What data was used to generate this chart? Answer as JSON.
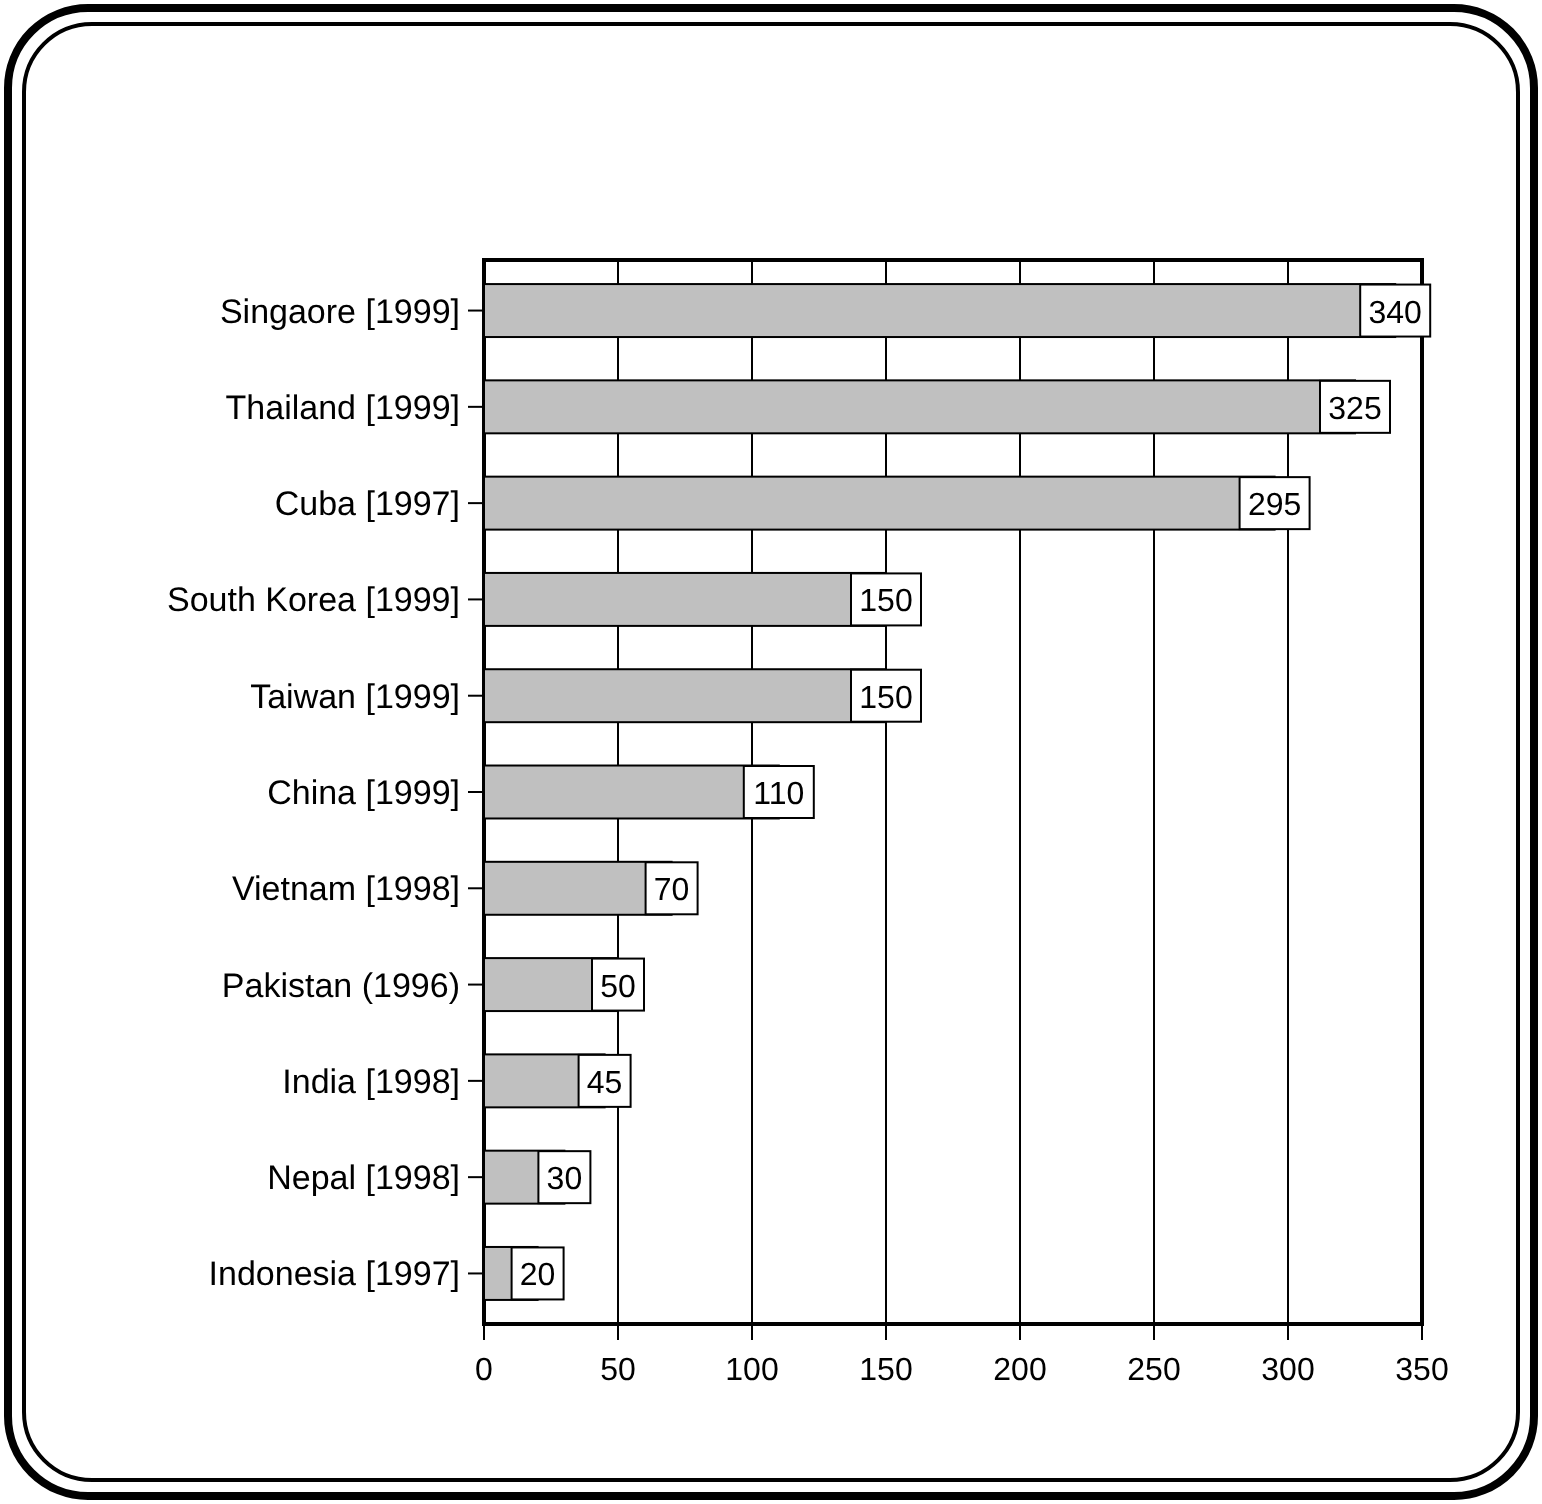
{
  "chart_data": {
    "type": "bar",
    "orientation": "horizontal",
    "categories": [
      "Singaore [1999]",
      "Thailand [1999]",
      "Cuba [1997]",
      "South Korea [1999]",
      "Taiwan [1999]",
      "China [1999]",
      "Vietnam [1998]",
      "Pakistan (1996)",
      "India [1998]",
      "Nepal [1998]",
      "Indonesia [1997]"
    ],
    "values": [
      340,
      325,
      295,
      150,
      150,
      110,
      70,
      50,
      45,
      30,
      20
    ],
    "color": "#c0c0c0",
    "xlim": [
      0,
      350
    ],
    "xticks": [
      0,
      50,
      100,
      150,
      200,
      250,
      300,
      350
    ],
    "grid": "x",
    "data_labels": true
  }
}
